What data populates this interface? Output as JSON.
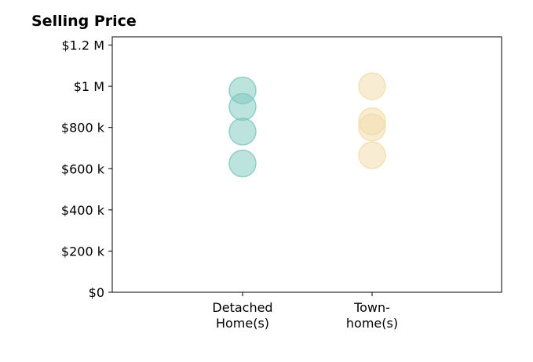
{
  "chart_data": {
    "type": "scatter",
    "title": "Selling Price",
    "xlabel": "",
    "ylabel": "",
    "categories": [
      [
        "Detached",
        "Home(s)"
      ],
      [
        "Town-",
        "home(s)"
      ]
    ],
    "series": [
      {
        "category": 0,
        "color": "#7cc8be",
        "values": [
          980000,
          900000,
          780000,
          625000
        ]
      },
      {
        "category": 1,
        "color": "#f1dca8",
        "values": [
          1000000,
          830000,
          800000,
          665000
        ]
      }
    ],
    "ylim": [
      0,
      1240000
    ],
    "yticks": [
      0,
      200000,
      400000,
      600000,
      800000,
      1000000,
      1200000
    ],
    "ytick_labels": [
      "$0",
      "$200 k",
      "$400 k",
      "$600 k",
      "$800 k",
      "$1 M",
      "$1.2 M"
    ],
    "grid": false,
    "legend": "none"
  }
}
